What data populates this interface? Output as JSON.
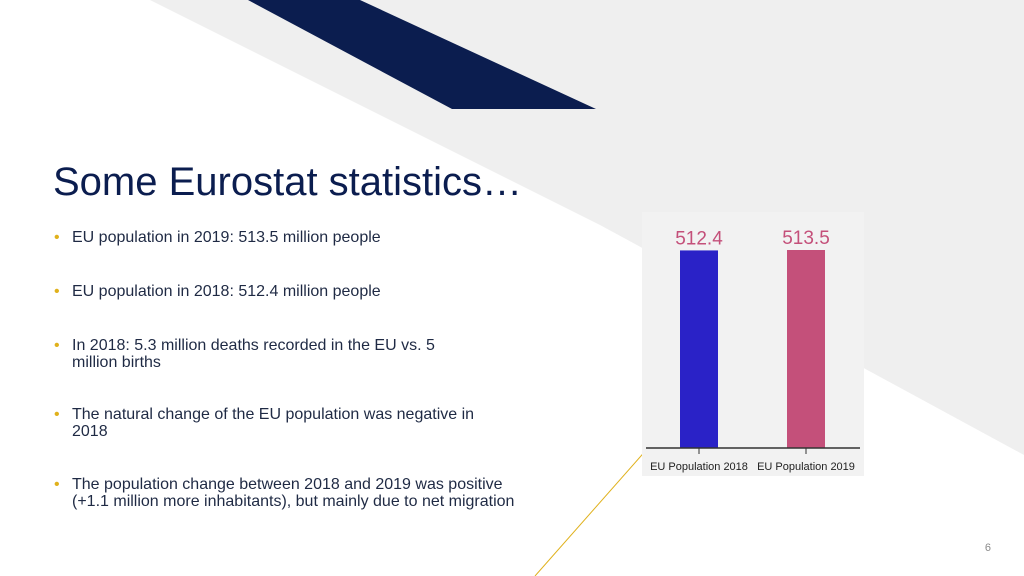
{
  "slide": {
    "title": "Some Eurostat statistics…",
    "bullets": [
      "EU population in 2019: 513.5 million people",
      "EU population in 2018: 512.4 million people",
      "In 2018: 5.3 million deaths recorded in the EU vs. 5 million births",
      "The natural change of the EU population was negative in 2018",
      "The population change between 2018 and 2019 was positive (+1.1 million more inhabitants), but mainly due to net migration"
    ],
    "page_number": "6",
    "colors": {
      "title": "#0b1d4f",
      "bullet": "#e0b11c",
      "navy_band": "#0b1d4f",
      "bar_2018": "#2a22c7",
      "bar_2019": "#c4507a"
    }
  },
  "chart_data": {
    "type": "bar",
    "categories": [
      "EU Population 2018",
      "EU Population 2019"
    ],
    "values": [
      512.4,
      513.5
    ],
    "data_labels": [
      "512.4",
      "513.5"
    ],
    "title": "",
    "xlabel": "",
    "ylabel": "",
    "grid": false,
    "legend": "none"
  }
}
